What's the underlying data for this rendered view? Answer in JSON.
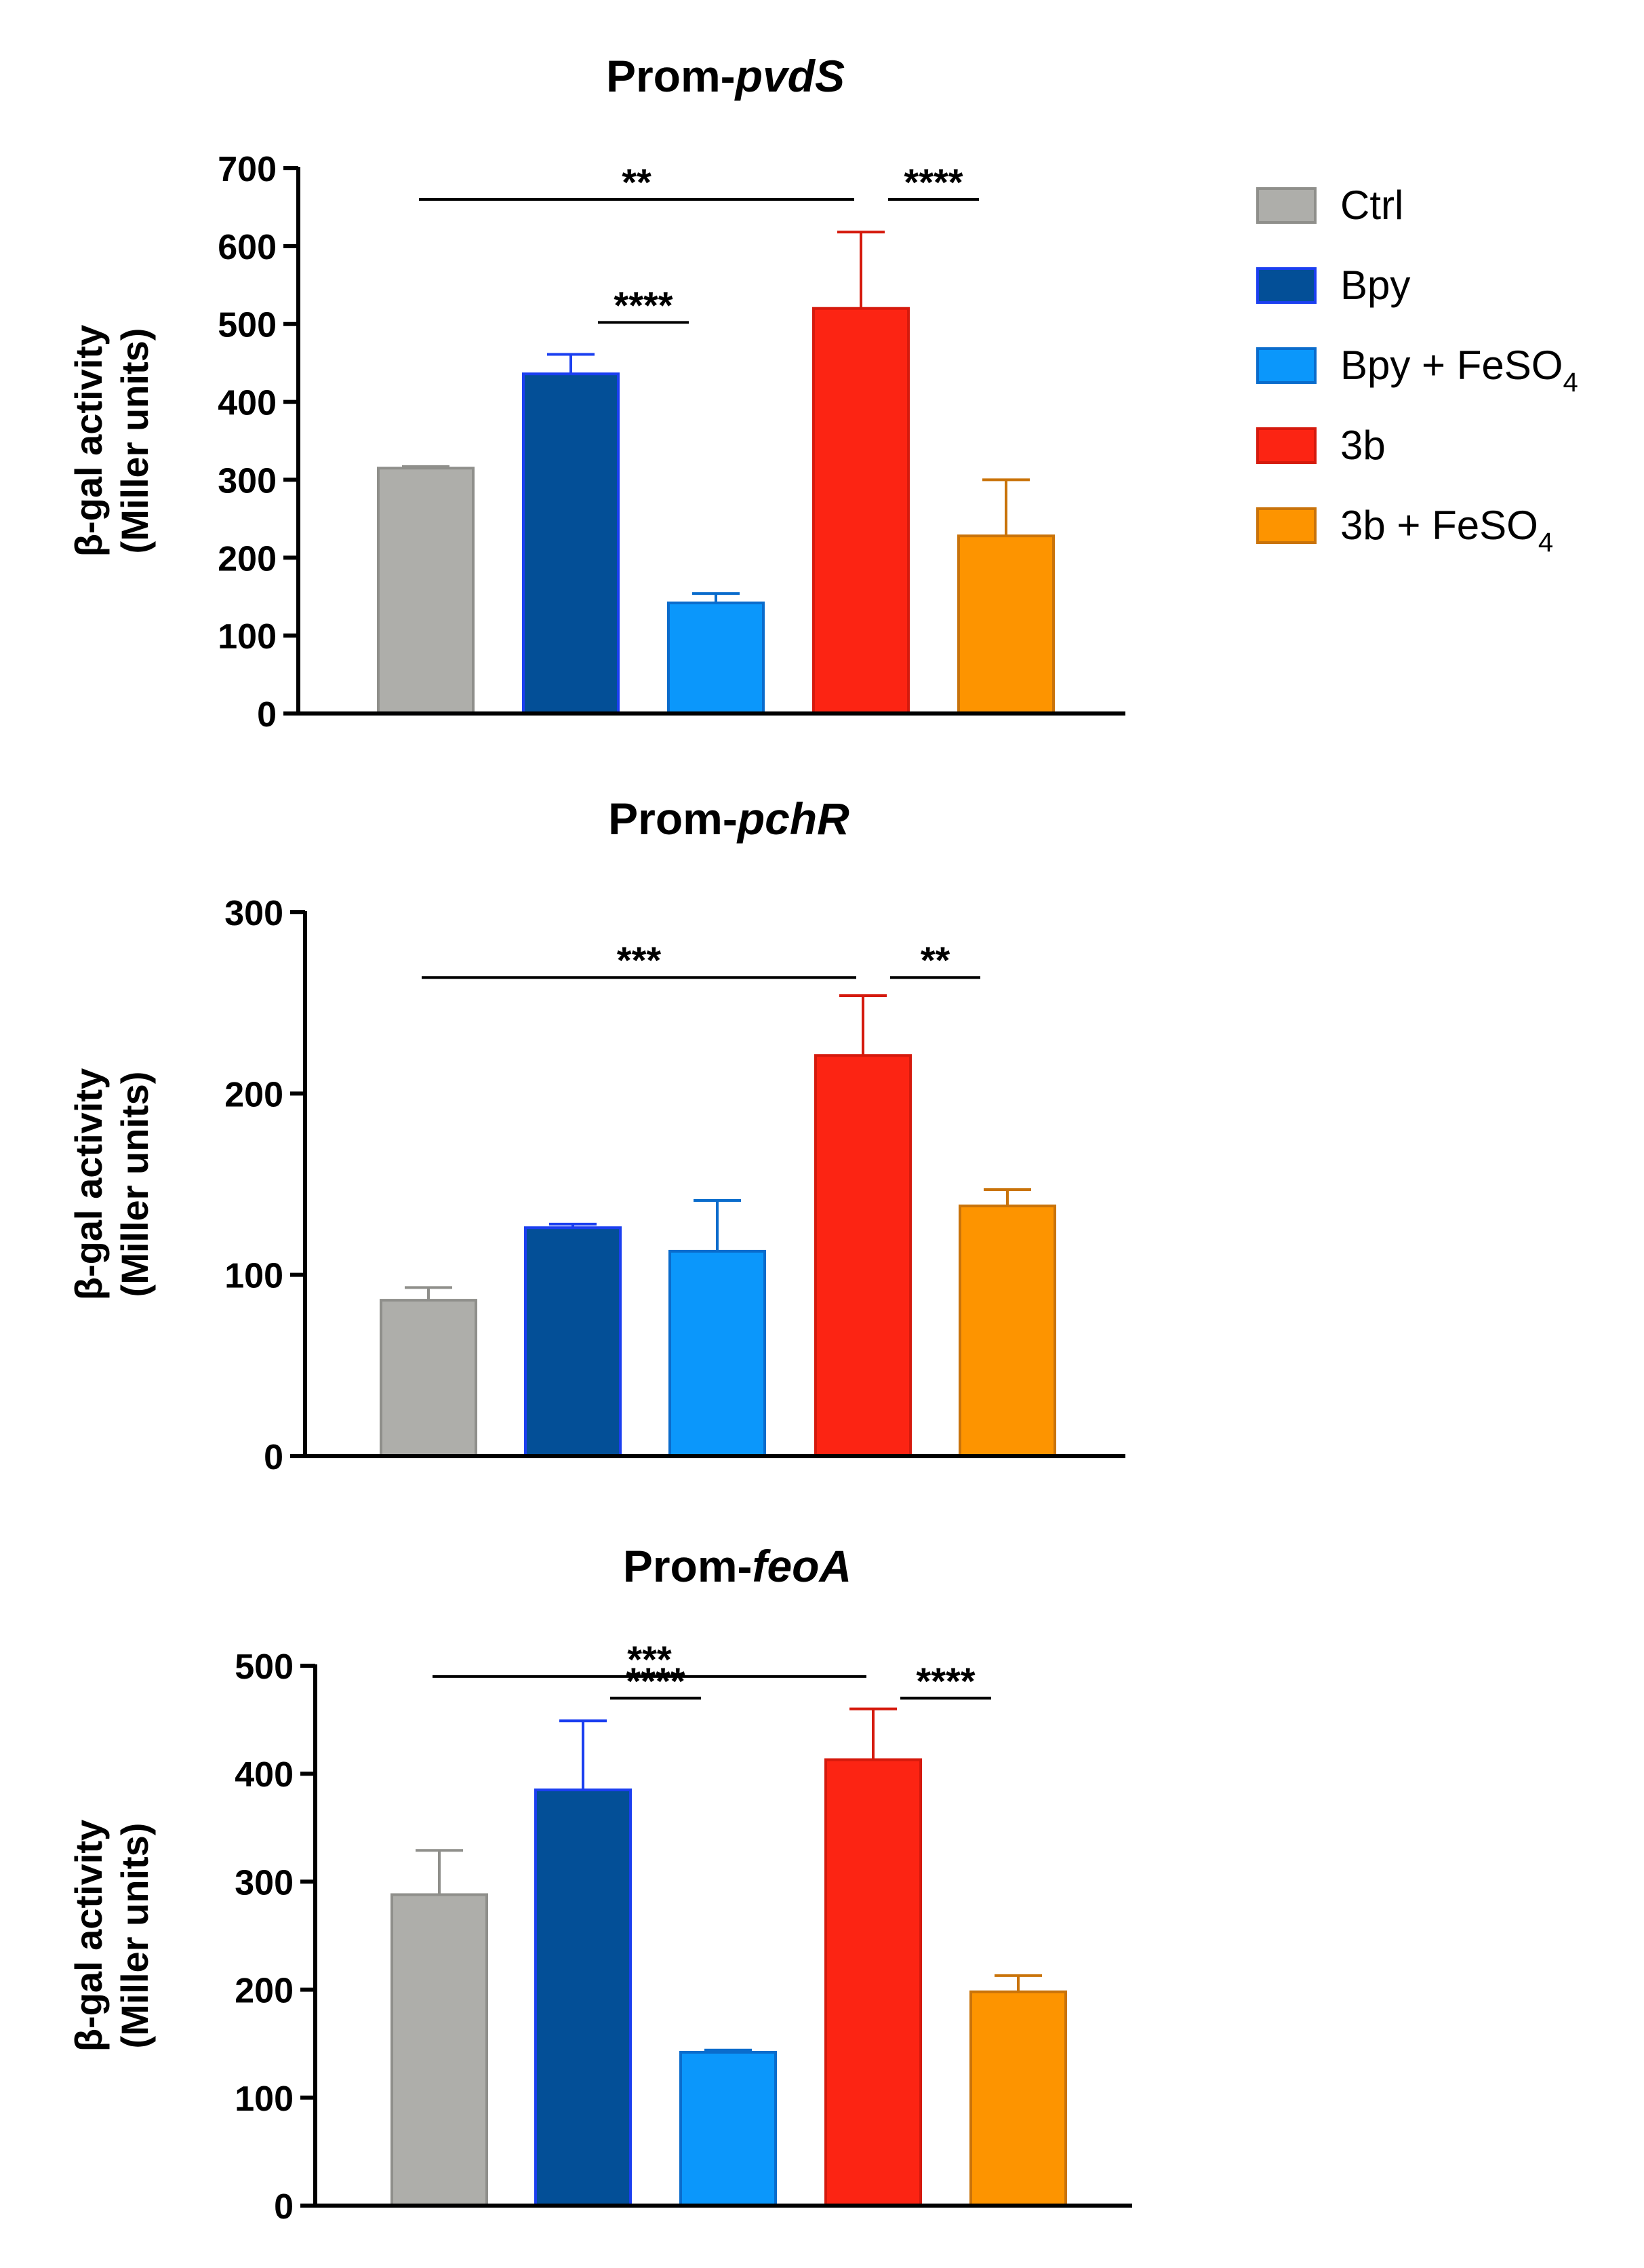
{
  "legend": {
    "items": [
      {
        "label": "Ctrl",
        "sub": "",
        "color": "#aeaeaa",
        "stroke": "#8f8f8b"
      },
      {
        "label": "Bpy",
        "sub": "",
        "color": "#034f97",
        "stroke": "#1b3ff0"
      },
      {
        "label": "Bpy + FeSO",
        "sub": "4",
        "color": "#0b97fb",
        "stroke": "#0a6ccc"
      },
      {
        "label": "3b",
        "sub": "",
        "color": "#fc2413",
        "stroke": "#d51a0d"
      },
      {
        "label": "3b + FeSO",
        "sub": "4",
        "color": "#fd9400",
        "stroke": "#c9730a"
      }
    ]
  },
  "chart_data": [
    {
      "type": "bar",
      "title_prefix": "Prom-",
      "title_gene": "pvdS",
      "ylabel_line1": "β-gal activity",
      "ylabel_line2": "(Miller units)",
      "categories": [
        "Ctrl",
        "Bpy",
        "Bpy + FeSO4",
        "3b",
        "3b + FeSO4"
      ],
      "values": [
        315,
        436,
        142,
        520,
        228
      ],
      "errors": [
        2,
        25,
        12,
        98,
        72
      ],
      "ylim": [
        0,
        700
      ],
      "yticks": [
        0,
        100,
        200,
        300,
        400,
        500,
        600,
        700
      ],
      "significance": [
        {
          "from": 0,
          "to": 3,
          "y": 660,
          "label": "**"
        },
        {
          "from": 3,
          "to": 4,
          "y": 660,
          "label": "****"
        },
        {
          "from": 1,
          "to": 2,
          "y": 502,
          "label": "****"
        }
      ]
    },
    {
      "type": "bar",
      "title_prefix": "Prom-",
      "title_gene": "pchR",
      "ylabel_line1": "β-gal activity",
      "ylabel_line2": "(Miller units)",
      "categories": [
        "Ctrl",
        "Bpy",
        "Bpy + FeSO4",
        "3b",
        "3b + FeSO4"
      ],
      "values": [
        86,
        126,
        113,
        221,
        138
      ],
      "errors": [
        7,
        2,
        28,
        33,
        9
      ],
      "ylim": [
        0,
        300
      ],
      "yticks": [
        0,
        100,
        200,
        300
      ],
      "significance": [
        {
          "from": 0,
          "to": 3,
          "y": 264,
          "label": "***"
        },
        {
          "from": 3,
          "to": 4,
          "y": 264,
          "label": "**"
        }
      ]
    },
    {
      "type": "bar",
      "title_prefix": "Prom-",
      "title_gene": "feoA",
      "ylabel_line1": "β-gal activity",
      "ylabel_line2": "(Miller units)",
      "categories": [
        "Ctrl",
        "Bpy",
        "Bpy + FeSO4",
        "3b",
        "3b + FeSO4"
      ],
      "values": [
        288,
        385,
        142,
        413,
        198
      ],
      "errors": [
        41,
        64,
        2,
        47,
        15
      ],
      "ylim": [
        0,
        500
      ],
      "yticks": [
        0,
        100,
        200,
        300,
        400,
        500
      ],
      "significance": [
        {
          "from": 0,
          "to": 3,
          "y": 490,
          "label": "***"
        },
        {
          "from": 1,
          "to": 2,
          "y": 470,
          "label": "****"
        },
        {
          "from": 3,
          "to": 4,
          "y": 470,
          "label": "****"
        }
      ]
    }
  ]
}
